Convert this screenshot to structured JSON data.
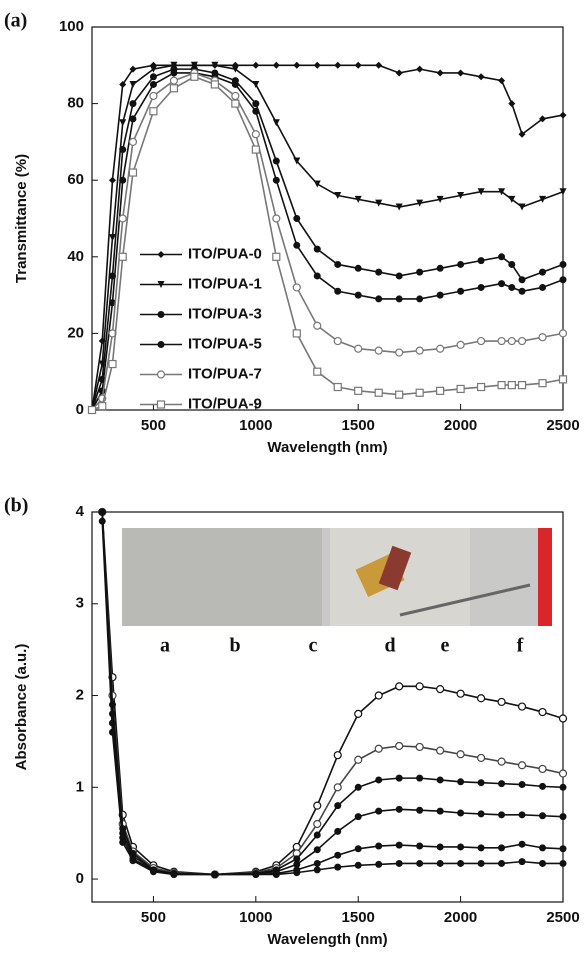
{
  "chart_data": [
    {
      "type": "line",
      "panel_label": "(a)",
      "xlabel": "Wavelength (nm)",
      "ylabel": "Transmittance (%)",
      "x": [
        200,
        250,
        300,
        350,
        400,
        500,
        600,
        700,
        800,
        900,
        1000,
        1100,
        1200,
        1300,
        1400,
        1500,
        1600,
        1700,
        1800,
        1900,
        2000,
        2100,
        2200,
        2250,
        2300,
        2400,
        2500
      ],
      "xlim": [
        200,
        2500
      ],
      "xticks": [
        500,
        1000,
        1500,
        2000,
        2500
      ],
      "ylim": [
        0,
        100
      ],
      "yticks": [
        0,
        20,
        40,
        60,
        80,
        100
      ],
      "legend": "center left",
      "series": [
        {
          "name": "ITO/PUA-0",
          "color": "#111111",
          "marker": "diamond",
          "values": [
            0,
            18,
            60,
            85,
            89,
            90,
            90,
            90,
            90,
            90,
            90,
            90,
            90,
            90,
            90,
            90,
            90,
            88,
            89,
            88,
            88,
            87,
            86,
            80,
            72,
            76,
            77
          ]
        },
        {
          "name": "ITO/PUA-1",
          "color": "#111111",
          "marker": "triangle",
          "values": [
            0,
            12,
            45,
            75,
            85,
            89,
            90,
            90,
            90,
            89,
            85,
            75,
            65,
            59,
            56,
            55,
            54,
            53,
            54,
            55,
            56,
            57,
            57,
            55,
            53,
            55,
            57
          ]
        },
        {
          "name": "ITO/PUA-3",
          "color": "#111111",
          "marker": "circle",
          "values": [
            0,
            8,
            35,
            68,
            80,
            87,
            89,
            89,
            88,
            86,
            80,
            65,
            50,
            42,
            38,
            37,
            36,
            35,
            36,
            37,
            38,
            39,
            40,
            38,
            34,
            36,
            38
          ]
        },
        {
          "name": "ITO/PUA-5",
          "color": "#111111",
          "marker": "circle",
          "values": [
            0,
            5,
            28,
            60,
            76,
            85,
            88,
            88,
            87,
            85,
            78,
            60,
            43,
            35,
            31,
            30,
            29,
            29,
            29,
            30,
            31,
            32,
            33,
            32,
            31,
            32,
            34
          ]
        },
        {
          "name": "ITO/PUA-7",
          "color": "#777777",
          "marker": "open-circle",
          "values": [
            0,
            3,
            20,
            50,
            70,
            82,
            86,
            88,
            86,
            82,
            72,
            50,
            32,
            22,
            18,
            16,
            15.5,
            15,
            15.5,
            16,
            17,
            18,
            18,
            18,
            18,
            19,
            20
          ]
        },
        {
          "name": "ITO/PUA-9",
          "color": "#777777",
          "marker": "open-square",
          "values": [
            0,
            1,
            12,
            40,
            62,
            78,
            84,
            87,
            85,
            80,
            68,
            40,
            20,
            10,
            6,
            5,
            4.5,
            4,
            4.5,
            5,
            5.5,
            6,
            6.5,
            6.5,
            6.5,
            7,
            8
          ]
        }
      ]
    },
    {
      "type": "line",
      "panel_label": "(b)",
      "xlabel": "Wavelength (nm)",
      "ylabel": "Absorbance (a.u.)",
      "inset_labels": [
        "a",
        "b",
        "c",
        "d",
        "e",
        "f"
      ],
      "x": [
        250,
        300,
        350,
        400,
        500,
        600,
        800,
        1000,
        1100,
        1200,
        1300,
        1400,
        1500,
        1600,
        1700,
        1800,
        1900,
        2000,
        2100,
        2200,
        2300,
        2400,
        2500
      ],
      "xlim": [
        200,
        2500
      ],
      "xticks": [
        500,
        1000,
        1500,
        2000,
        2500
      ],
      "ylim": [
        -0.25,
        4
      ],
      "yticks": [
        0,
        1,
        2,
        3,
        4
      ],
      "series": [
        {
          "color": "#111111",
          "marker": "open-circle",
          "values": [
            4,
            2.2,
            0.7,
            0.35,
            0.15,
            0.08,
            0.05,
            0.08,
            0.15,
            0.35,
            0.8,
            1.35,
            1.8,
            2.0,
            2.1,
            2.1,
            2.07,
            2.02,
            1.97,
            1.93,
            1.88,
            1.82,
            1.75
          ]
        },
        {
          "color": "#444444",
          "marker": "open-circle",
          "values": [
            4,
            2,
            0.6,
            0.3,
            0.12,
            0.07,
            0.05,
            0.07,
            0.12,
            0.28,
            0.6,
            1.0,
            1.3,
            1.42,
            1.45,
            1.44,
            1.4,
            1.36,
            1.32,
            1.28,
            1.24,
            1.2,
            1.15
          ]
        },
        {
          "color": "#111111",
          "marker": "circle",
          "values": [
            4,
            1.9,
            0.55,
            0.28,
            0.1,
            0.06,
            0.05,
            0.06,
            0.1,
            0.22,
            0.48,
            0.8,
            1.0,
            1.08,
            1.1,
            1.1,
            1.08,
            1.06,
            1.05,
            1.04,
            1.03,
            1.01,
            1.0
          ]
        },
        {
          "color": "#111111",
          "marker": "circle",
          "values": [
            4,
            1.8,
            0.5,
            0.25,
            0.1,
            0.06,
            0.05,
            0.06,
            0.08,
            0.16,
            0.32,
            0.52,
            0.68,
            0.74,
            0.76,
            0.75,
            0.74,
            0.72,
            0.71,
            0.7,
            0.7,
            0.69,
            0.68
          ]
        },
        {
          "color": "#111111",
          "marker": "circle",
          "values": [
            4,
            1.7,
            0.45,
            0.22,
            0.09,
            0.05,
            0.05,
            0.05,
            0.06,
            0.1,
            0.17,
            0.26,
            0.33,
            0.36,
            0.37,
            0.36,
            0.35,
            0.35,
            0.34,
            0.34,
            0.38,
            0.34,
            0.33
          ]
        },
        {
          "color": "#111111",
          "marker": "circle",
          "values": [
            3.9,
            1.6,
            0.4,
            0.2,
            0.08,
            0.05,
            0.05,
            0.05,
            0.05,
            0.07,
            0.1,
            0.13,
            0.15,
            0.16,
            0.17,
            0.17,
            0.17,
            0.17,
            0.17,
            0.17,
            0.19,
            0.17,
            0.17
          ]
        }
      ]
    }
  ]
}
